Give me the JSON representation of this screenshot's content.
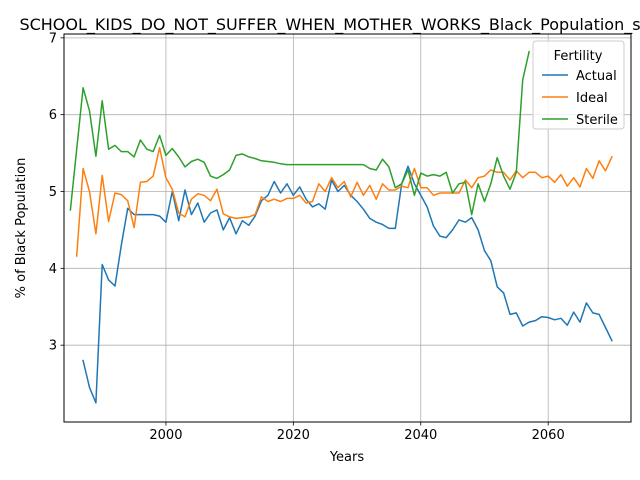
{
  "chart_data": {
    "type": "line",
    "title": "SCHOOL_KIDS_DO_NOT_SUFFER_WHEN_MOTHER_WORKS_Black_Population_s",
    "xlabel": "Years",
    "ylabel": "% of Black Population",
    "xlim": [
      1984,
      2073
    ],
    "ylim": [
      2.0,
      7.05
    ],
    "xticks": [
      2000,
      2020,
      2040,
      2060
    ],
    "yticks": [
      3,
      4,
      5,
      6,
      7
    ],
    "grid": true,
    "legend": {
      "title": "Fertility",
      "placement": "top-right"
    },
    "series": [
      {
        "name": "Actual",
        "color": "#1f77b4",
        "x": [
          1987,
          1988,
          1989,
          1990,
          1991,
          1992,
          1993,
          1994,
          1995,
          1996,
          1997,
          1998,
          1999,
          2000,
          2001,
          2002,
          2003,
          2004,
          2005,
          2006,
          2007,
          2008,
          2009,
          2010,
          2011,
          2012,
          2013,
          2014,
          2015,
          2016,
          2017,
          2018,
          2019,
          2020,
          2021,
          2022,
          2023,
          2024,
          2025,
          2026,
          2027,
          2028,
          2029,
          2030,
          2031,
          2032,
          2033,
          2034,
          2035,
          2036,
          2037,
          2038,
          2039,
          2040,
          2041,
          2042,
          2043,
          2044,
          2045,
          2046,
          2047,
          2048,
          2049,
          2050,
          2051,
          2052,
          2053,
          2054,
          2055,
          2056,
          2057,
          2058,
          2059,
          2060,
          2061,
          2062,
          2063,
          2064,
          2065,
          2066,
          2067,
          2068,
          2069,
          2070
        ],
        "y": [
          2.8,
          2.45,
          2.25,
          4.05,
          3.85,
          3.77,
          4.3,
          4.78,
          4.7,
          4.7,
          4.7,
          4.7,
          4.68,
          4.6,
          5.0,
          4.62,
          5.02,
          4.7,
          4.85,
          4.6,
          4.72,
          4.76,
          4.5,
          4.66,
          4.45,
          4.62,
          4.56,
          4.68,
          4.88,
          4.95,
          5.13,
          4.98,
          5.1,
          4.95,
          5.06,
          4.9,
          4.8,
          4.84,
          4.77,
          5.15,
          5.0,
          5.08,
          4.95,
          4.87,
          4.77,
          4.65,
          4.6,
          4.57,
          4.52,
          4.52,
          5.1,
          5.33,
          5.1,
          4.95,
          4.8,
          4.55,
          4.42,
          4.4,
          4.5,
          4.63,
          4.6,
          4.66,
          4.5,
          4.23,
          4.1,
          3.76,
          3.68,
          3.4,
          3.42,
          3.25,
          3.3,
          3.32,
          3.37,
          3.36,
          3.33,
          3.35,
          3.26,
          3.43,
          3.3,
          3.55,
          3.42,
          3.4,
          3.23,
          3.06
        ]
      },
      {
        "name": "Ideal",
        "color": "#ff7f0e",
        "x": [
          1986,
          1987,
          1988,
          1989,
          1990,
          1991,
          1992,
          1993,
          1994,
          1995,
          1996,
          1997,
          1998,
          1999,
          2000,
          2001,
          2002,
          2003,
          2004,
          2005,
          2006,
          2007,
          2008,
          2009,
          2010,
          2011,
          2012,
          2013,
          2014,
          2015,
          2016,
          2017,
          2018,
          2019,
          2020,
          2021,
          2022,
          2023,
          2024,
          2025,
          2026,
          2027,
          2028,
          2029,
          2030,
          2031,
          2032,
          2033,
          2034,
          2035,
          2036,
          2037,
          2038,
          2039,
          2040,
          2041,
          2042,
          2043,
          2044,
          2045,
          2046,
          2047,
          2048,
          2049,
          2050,
          2051,
          2052,
          2053,
          2054,
          2055,
          2056,
          2057,
          2058,
          2059,
          2060,
          2061,
          2062,
          2063,
          2064,
          2065,
          2066,
          2067,
          2068,
          2069,
          2070
        ],
        "y": [
          4.16,
          5.3,
          5.0,
          4.45,
          5.21,
          4.61,
          4.98,
          4.96,
          4.88,
          4.53,
          5.12,
          5.13,
          5.2,
          5.57,
          5.18,
          5.03,
          4.72,
          4.67,
          4.9,
          4.97,
          4.95,
          4.88,
          5.03,
          4.71,
          4.67,
          4.65,
          4.66,
          4.67,
          4.7,
          4.93,
          4.87,
          4.9,
          4.87,
          4.91,
          4.91,
          4.95,
          4.85,
          4.87,
          5.1,
          5.0,
          5.18,
          5.05,
          5.13,
          4.93,
          5.12,
          4.95,
          5.08,
          4.9,
          5.1,
          5.02,
          5.02,
          5.07,
          5.05,
          5.3,
          5.05,
          5.05,
          4.95,
          4.98,
          4.98,
          4.98,
          4.98,
          5.15,
          5.05,
          5.18,
          5.2,
          5.28,
          5.25,
          5.25,
          5.15,
          5.27,
          5.18,
          5.25,
          5.25,
          5.18,
          5.2,
          5.12,
          5.22,
          5.07,
          5.18,
          5.06,
          5.3,
          5.17,
          5.4,
          5.27,
          5.45
        ]
      },
      {
        "name": "Sterile",
        "color": "#2ca02c",
        "x": [
          1985,
          1986,
          1987,
          1988,
          1989,
          1990,
          1991,
          1992,
          1993,
          1994,
          1995,
          1996,
          1997,
          1998,
          1999,
          2000,
          2001,
          2002,
          2003,
          2004,
          2005,
          2006,
          2007,
          2008,
          2009,
          2010,
          2011,
          2012,
          2013,
          2014,
          2015,
          2016,
          2017,
          2018,
          2019,
          2020,
          2021,
          2022,
          2023,
          2024,
          2025,
          2026,
          2027,
          2028,
          2029,
          2030,
          2031,
          2032,
          2033,
          2034,
          2035,
          2036,
          2037,
          2038,
          2039,
          2040,
          2041,
          2042,
          2043,
          2044,
          2045,
          2046,
          2047,
          2048,
          2049,
          2050,
          2051,
          2052,
          2053,
          2054,
          2055,
          2056,
          2057
        ],
        "y": [
          4.76,
          5.55,
          6.35,
          6.05,
          5.46,
          6.18,
          5.55,
          5.6,
          5.52,
          5.52,
          5.45,
          5.67,
          5.55,
          5.52,
          5.73,
          5.47,
          5.56,
          5.45,
          5.32,
          5.39,
          5.42,
          5.38,
          5.2,
          5.17,
          5.22,
          5.28,
          5.47,
          5.49,
          5.45,
          5.43,
          5.4,
          5.39,
          5.38,
          5.36,
          5.35,
          5.35,
          5.35,
          5.35,
          5.35,
          5.35,
          5.35,
          5.35,
          5.35,
          5.35,
          5.35,
          5.35,
          5.35,
          5.3,
          5.28,
          5.42,
          5.32,
          5.05,
          5.1,
          5.28,
          4.95,
          5.24,
          5.2,
          5.22,
          5.2,
          5.25,
          4.98,
          5.1,
          5.12,
          4.7,
          5.1,
          4.87,
          5.1,
          5.44,
          5.2,
          5.03,
          5.25,
          6.45,
          6.82
        ]
      }
    ]
  }
}
